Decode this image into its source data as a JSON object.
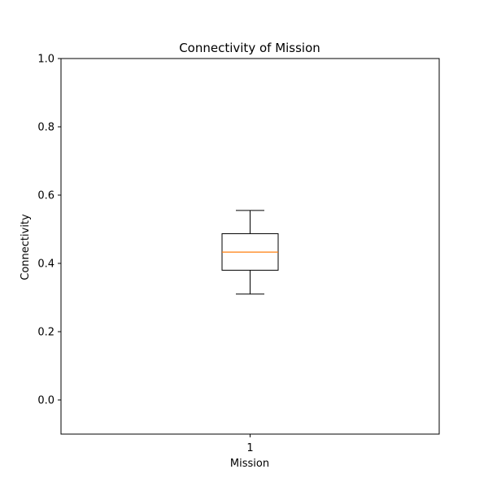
{
  "chart_data": {
    "type": "box",
    "title": "Connectivity of Mission",
    "xlabel": "Mission",
    "ylabel": "Connectivity",
    "categories": [
      "1"
    ],
    "ylim": [
      -0.1,
      1.0
    ],
    "yticks": [
      0.0,
      0.2,
      0.4,
      0.6,
      0.8,
      1.0
    ],
    "ytick_labels": [
      "0.0",
      "0.2",
      "0.4",
      "0.6",
      "0.8",
      "1.0"
    ],
    "boxes": [
      {
        "category": "1",
        "whisker_low": 0.31,
        "q1": 0.38,
        "median": 0.433,
        "q3": 0.487,
        "whisker_high": 0.555
      }
    ],
    "grid": false,
    "colors": {
      "box": "#000000",
      "median": "#ff7f0e",
      "axes": "#000000"
    }
  }
}
